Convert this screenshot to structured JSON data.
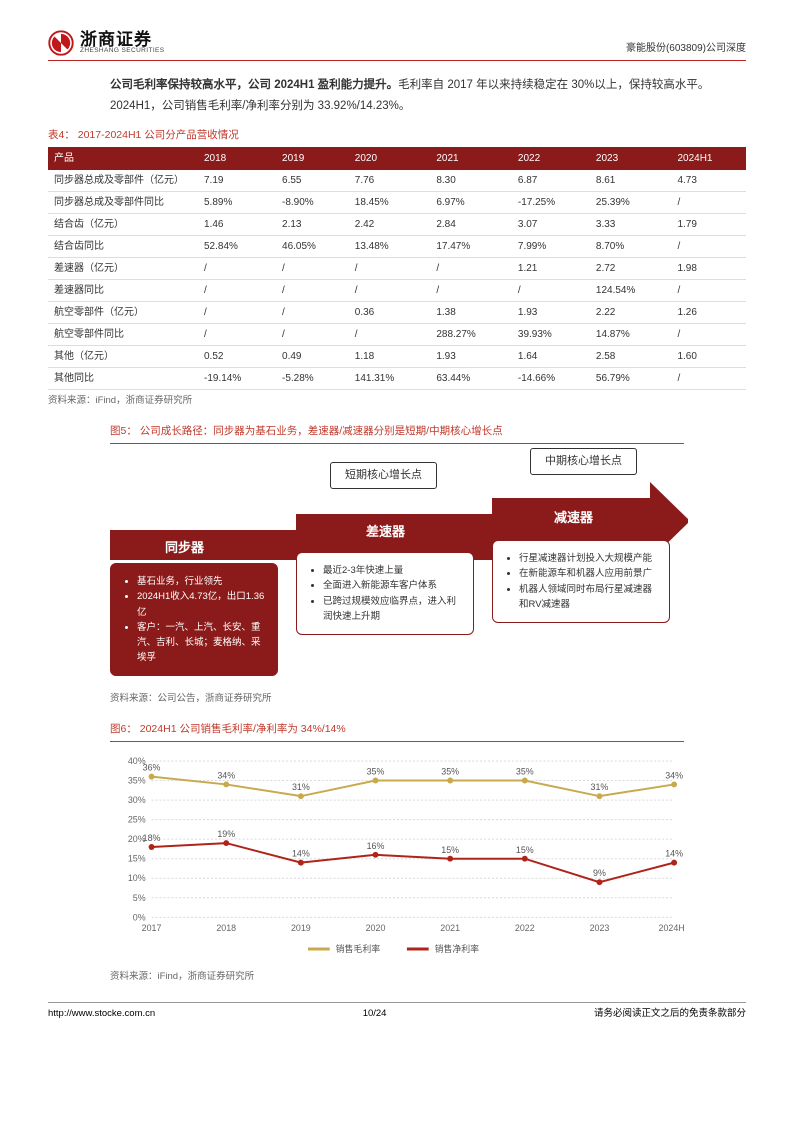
{
  "header": {
    "logo_cn": "浙商证券",
    "logo_en": "ZHESHANG SECURITIES",
    "right": "豪能股份(603809)公司深度"
  },
  "intro": {
    "bold": "公司毛利率保持较高水平，公司 2024H1 盈利能力提升。",
    "text": "毛利率自 2017 年以来持续稳定在 30%以上，保持较高水平。2024H1，公司销售毛利率/净利率分别为 33.92%/14.23%。"
  },
  "table4": {
    "caption": "表4：  2017-2024H1 公司分产品营收情况",
    "columns": [
      "产品",
      "2018",
      "2019",
      "2020",
      "2021",
      "2022",
      "2023",
      "2024H1"
    ],
    "rows": [
      [
        "同步器总成及零部件（亿元）",
        "7.19",
        "6.55",
        "7.76",
        "8.30",
        "6.87",
        "8.61",
        "4.73"
      ],
      [
        "同步器总成及零部件同比",
        "5.89%",
        "-8.90%",
        "18.45%",
        "6.97%",
        "-17.25%",
        "25.39%",
        "/"
      ],
      [
        "结合齿（亿元）",
        "1.46",
        "2.13",
        "2.42",
        "2.84",
        "3.07",
        "3.33",
        "1.79"
      ],
      [
        "结合齿同比",
        "52.84%",
        "46.05%",
        "13.48%",
        "17.47%",
        "7.99%",
        "8.70%",
        "/"
      ],
      [
        "差速器（亿元）",
        "/",
        "/",
        "/",
        "/",
        "1.21",
        "2.72",
        "1.98"
      ],
      [
        "差速器同比",
        "/",
        "/",
        "/",
        "/",
        "/",
        "124.54%",
        "/"
      ],
      [
        "航空零部件（亿元）",
        "/",
        "/",
        "0.36",
        "1.38",
        "1.93",
        "2.22",
        "1.26"
      ],
      [
        "航空零部件同比",
        "/",
        "/",
        "/",
        "288.27%",
        "39.93%",
        "14.87%",
        "/"
      ],
      [
        "其他（亿元）",
        "0.52",
        "0.49",
        "1.18",
        "1.93",
        "1.64",
        "2.58",
        "1.60"
      ],
      [
        "其他同比",
        "-19.14%",
        "-5.28%",
        "141.31%",
        "63.44%",
        "-14.66%",
        "56.79%",
        "/"
      ]
    ],
    "source": "资料来源：iFind，浙商证券研究所"
  },
  "fig5": {
    "caption": "图5：  公司成长路径：同步器为基石业务，差速器/减速器分别是短期/中期核心增长点",
    "label_short": "短期核心增长点",
    "label_mid": "中期核心增长点",
    "stage1_title": "同步器",
    "stage2_title": "差速器",
    "stage3_title": "减速器",
    "stage1_items": [
      "基石业务，行业领先",
      "2024H1收入4.73亿，出口1.36亿",
      "客户：一汽、上汽、长安、重汽、吉利、长城；麦格纳、采埃孚"
    ],
    "stage2_items": [
      "最近2-3年快速上量",
      "全面进入新能源车客户体系",
      "已跨过规模效应临界点，进入利润快速上升期"
    ],
    "stage3_items": [
      "行星减速器计划投入大规模产能",
      "在新能源车和机器人应用前景广",
      "机器人领域同时布局行星减速器和RV减速器"
    ],
    "arrow_color": "#8b1a1a",
    "source": "资料来源：公司公告，浙商证券研究所"
  },
  "fig6": {
    "caption": "图6：  2024H1 公司销售毛利率/净利率为 34%/14%",
    "x_labels": [
      "2017",
      "2018",
      "2019",
      "2020",
      "2021",
      "2022",
      "2023",
      "2024H1"
    ],
    "y_ticks": [
      0,
      5,
      10,
      15,
      20,
      25,
      30,
      35,
      40
    ],
    "series": [
      {
        "name": "销售毛利率",
        "color": "#c9a94e",
        "values": [
          36,
          34,
          31,
          35,
          35,
          35,
          31,
          34
        ]
      },
      {
        "name": "销售净利率",
        "color": "#b02318",
        "values": [
          18,
          19,
          14,
          16,
          15,
          15,
          9,
          14
        ]
      }
    ],
    "ylim": [
      0,
      40
    ],
    "grid_color": "#d9d9d9",
    "label_fontsize": 9,
    "datalabel_fontsize": 9,
    "source": "资料来源：iFind，浙商证券研究所"
  },
  "footer": {
    "url": "http://www.stocke.com.cn",
    "page": "10/24",
    "disclaimer": "请务必阅读正文之后的免责条款部分"
  }
}
